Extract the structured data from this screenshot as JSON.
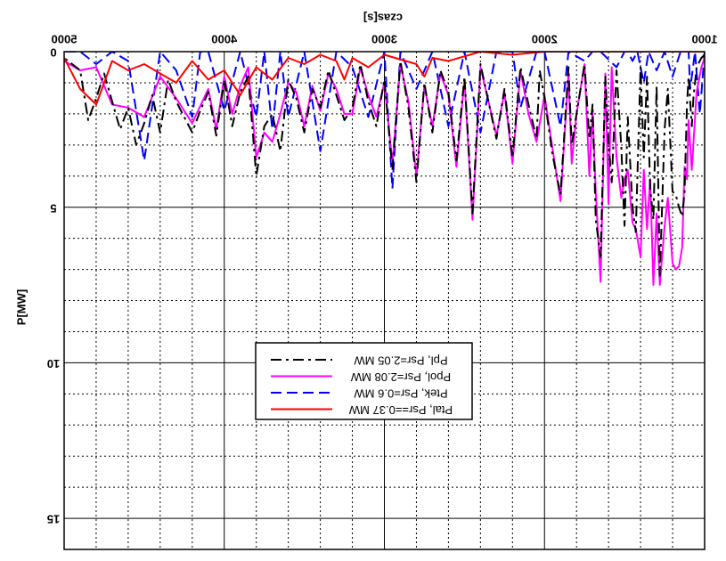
{
  "chart_data": {
    "type": "line",
    "mirrored": "horizontal",
    "xlabel": "czas[s]",
    "ylabel": "P[MW]",
    "xlim": [
      1000,
      5000
    ],
    "ylim": [
      0,
      16
    ],
    "x_ticks": [
      "1000",
      "2000",
      "3000",
      "4000",
      "5000"
    ],
    "y_ticks": [
      "0",
      "5",
      "10",
      "15"
    ],
    "grid": true,
    "legend_position": "center",
    "legend": [
      {
        "label": "Ppl, Psr=2.05 MW",
        "color": "#000000",
        "dash": "12 5 3 5"
      },
      {
        "label": "Ppol, Psr=2.08 MW",
        "color": "#ff00ff",
        "dash": ""
      },
      {
        "label": "Ptek, Psr=0.6 MW",
        "color": "#0000ff",
        "dash": "12 6"
      },
      {
        "label": "Ptal, Psr==0.37 MW",
        "color": "#ff0000",
        "dash": ""
      }
    ],
    "series": [
      {
        "name": "Ppl, Psr=2.05 MW",
        "color": "#000000",
        "dash": "12 5 3 5",
        "x": [
          1000,
          1020,
          1050,
          1070,
          1080,
          1100,
          1110,
          1125,
          1140,
          1160,
          1180,
          1200,
          1230,
          1250,
          1280,
          1300,
          1320,
          1340,
          1360,
          1380,
          1400,
          1430,
          1450,
          1480,
          1500,
          1520,
          1550,
          1580,
          1600,
          1620,
          1650,
          1680,
          1700,
          1720,
          1750,
          1800,
          1830,
          1850,
          1900,
          1950,
          2000,
          2030,
          2050,
          2100,
          2150,
          2200,
          2250,
          2300,
          2400,
          2450,
          2500,
          2550,
          2600,
          2650,
          2700,
          2750,
          2800,
          2850,
          2900,
          2950,
          3000,
          3050,
          3100,
          3150,
          3200,
          3250,
          3300,
          3350,
          3400,
          3450,
          3500,
          3550,
          3600,
          3650,
          3700,
          3750,
          3800,
          3850,
          3900,
          3950,
          4000,
          4050,
          4100,
          4150,
          4200,
          4250,
          4300,
          4350,
          4400,
          4450,
          4500,
          4550,
          4600,
          4650,
          4700,
          4750,
          4800,
          4850,
          4900,
          4950,
          5000
        ],
        "y": [
          0.1,
          0.2,
          0.5,
          1.5,
          2.4,
          0.8,
          1.7,
          4.5,
          5.3,
          5.0,
          4.6,
          4.5,
          1.2,
          2.5,
          7.2,
          1.1,
          5.4,
          4.4,
          0.8,
          3.4,
          0.5,
          5.8,
          5.0,
          2.1,
          5.6,
          3.1,
          0.6,
          4.2,
          2.9,
          0.8,
          6.6,
          5.4,
          1.7,
          2.8,
          0.4,
          2.0,
          3.0,
          0.5,
          4.6,
          3.3,
          1.5,
          0.6,
          2.8,
          1.7,
          0.5,
          3.4,
          1.2,
          2.8,
          0.4,
          5.2,
          0.8,
          3.5,
          1.3,
          0.6,
          2.6,
          1.0,
          4.2,
          1.8,
          0.3,
          3.8,
          0.9,
          2.4,
          1.6,
          0.4,
          1.8,
          2.2,
          1.4,
          0.6,
          1.8,
          1.2,
          2.6,
          1.5,
          0.9,
          3.2,
          2.0,
          2.4,
          4.0,
          0.8,
          1.3,
          2.4,
          0.9,
          2.7,
          1.3,
          1.9,
          2.6,
          2.1,
          1.6,
          0.9,
          2.6,
          1.4,
          2.3,
          3.0,
          1.8,
          2.5,
          1.6,
          0.7,
          1.5,
          2.2,
          0.6,
          0.4,
          0.2
        ]
      },
      {
        "name": "Ppol, Psr=2.08 MW",
        "color": "#ff00ff",
        "dash": "",
        "x": [
          1000,
          1020,
          1050,
          1080,
          1100,
          1110,
          1125,
          1140,
          1160,
          1180,
          1200,
          1230,
          1250,
          1280,
          1300,
          1320,
          1340,
          1360,
          1380,
          1400,
          1430,
          1450,
          1480,
          1500,
          1520,
          1550,
          1580,
          1600,
          1620,
          1650,
          1680,
          1700,
          1720,
          1750,
          1800,
          1830,
          1850,
          1900,
          1950,
          2000,
          2050,
          2100,
          2150,
          2200,
          2250,
          2300,
          2400,
          2450,
          2500,
          2550,
          2600,
          2650,
          2700,
          2750,
          2800,
          2850,
          2900,
          2950,
          3000,
          3050,
          3100,
          3150,
          3200,
          3250,
          3300,
          3350,
          3400,
          3450,
          3500,
          3550,
          3600,
          3650,
          3700,
          3750,
          3800,
          3850,
          3900,
          3950,
          4000,
          4050,
          4100,
          4200,
          4300,
          4400,
          4500,
          4600,
          4700,
          4800,
          4900,
          5000
        ],
        "y": [
          0.2,
          0.5,
          1.3,
          3.8,
          2.2,
          4.1,
          3.7,
          6.3,
          6.9,
          7.0,
          6.8,
          4.7,
          5.6,
          7.5,
          5.2,
          7.5,
          4.1,
          5.7,
          3.8,
          6.6,
          5.7,
          5.5,
          3.8,
          4.1,
          4.7,
          3.4,
          0.5,
          4.9,
          0.7,
          7.4,
          4.5,
          1.9,
          4.0,
          0.4,
          2.0,
          3.6,
          0.7,
          4.8,
          3.1,
          1.4,
          2.9,
          2.0,
          0.6,
          3.6,
          1.3,
          2.7,
          0.5,
          5.4,
          0.9,
          3.7,
          1.4,
          0.7,
          2.4,
          1.1,
          4.0,
          1.6,
          0.4,
          3.6,
          1.0,
          2.1,
          1.4,
          0.5,
          2.0,
          2.0,
          1.2,
          0.7,
          1.9,
          1.1,
          2.4,
          1.3,
          1.0,
          2.0,
          2.9,
          2.6,
          3.4,
          0.5,
          1.1,
          2.0,
          0.8,
          2.5,
          1.2,
          2.3,
          1.5,
          0.8,
          2.1,
          1.8,
          1.7,
          0.5,
          0.6,
          0.3
        ]
      },
      {
        "name": "Ptek, Psr=0.6 MW",
        "color": "#0000ff",
        "dash": "12 6",
        "x": [
          1000,
          1030,
          1060,
          1090,
          1100,
          1150,
          1200,
          1250,
          1300,
          1350,
          1380,
          1420,
          1450,
          1480,
          1500,
          1550,
          1650,
          1700,
          1750,
          1850,
          1900,
          2000,
          2050,
          2150,
          2200,
          2300,
          2400,
          2500,
          2600,
          2700,
          2800,
          2900,
          2950,
          3000,
          3100,
          3200,
          3300,
          3400,
          3500,
          3600,
          3650,
          3700,
          3750,
          3800,
          3900,
          4000,
          4100,
          4150,
          4200,
          4300,
          4400,
          4500,
          4600,
          4700,
          4800,
          4900,
          5000
        ],
        "y": [
          0.0,
          2.0,
          0.0,
          1.2,
          0.0,
          0.0,
          0.8,
          0.0,
          0.6,
          0.0,
          1.0,
          0.0,
          0.3,
          0.0,
          0.0,
          0.5,
          0.0,
          0.0,
          0.3,
          0.0,
          2.4,
          0.0,
          0.0,
          1.8,
          0.0,
          0.0,
          2.6,
          0.0,
          2.4,
          0.0,
          1.2,
          0.0,
          4.4,
          0.0,
          2.1,
          0.5,
          0.0,
          3.2,
          0.0,
          2.1,
          0.0,
          2.5,
          0.0,
          2.1,
          0.0,
          1.9,
          0.0,
          0.0,
          2.1,
          0.6,
          0.0,
          3.5,
          0.3,
          0.0,
          0.4,
          0.0,
          0.0
        ]
      },
      {
        "name": "Ptal, Psr==0.37 MW",
        "color": "#ff0000",
        "dash": "",
        "x": [
          1000,
          1500,
          2000,
          2200,
          2400,
          2600,
          2700,
          2750,
          2800,
          3000,
          3100,
          3200,
          3250,
          3300,
          3400,
          3500,
          3600,
          3700,
          3800,
          3900,
          4000,
          4100,
          4200,
          4300,
          4400,
          4500,
          4600,
          4700,
          4800,
          4900,
          5000
        ],
        "y": [
          0.0,
          0.0,
          0.0,
          0.1,
          0.0,
          0.3,
          0.2,
          0.8,
          0.4,
          0.1,
          0.5,
          0.2,
          0.9,
          0.3,
          0.1,
          0.4,
          0.2,
          0.9,
          0.5,
          1.4,
          0.6,
          0.9,
          0.3,
          1.0,
          0.7,
          0.4,
          0.6,
          0.3,
          1.7,
          1.2,
          0.2
        ]
      }
    ]
  }
}
